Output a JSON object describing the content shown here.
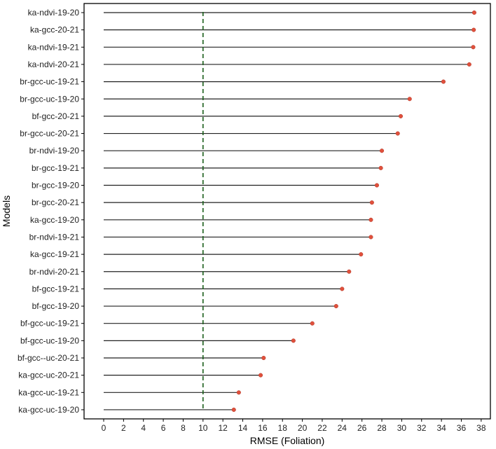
{
  "chart_data": {
    "type": "lollipop",
    "xlabel": "RMSE (Foliation)",
    "ylabel": "Models",
    "xlim": [
      0,
      38
    ],
    "xticks": [
      0,
      2,
      4,
      6,
      8,
      10,
      12,
      14,
      16,
      18,
      20,
      22,
      24,
      26,
      28,
      30,
      32,
      34,
      36,
      38
    ],
    "reference_line": {
      "x": 10,
      "style": "dashed",
      "color": "#1a5e1a"
    },
    "grid": false,
    "point_color": "#e0503c",
    "stem_color": "#222222",
    "categories": [
      "ka-ndvi-19-20",
      "ka-gcc-20-21",
      "ka-ndvi-19-21",
      "ka-ndvi-20-21",
      "br-gcc-uc-19-21",
      "br-gcc-uc-19-20",
      "bf-gcc-20-21",
      "br-gcc-uc-20-21",
      "br-ndvi-19-20",
      "br-gcc-19-21",
      "br-gcc-19-20",
      "br-gcc-20-21",
      "ka-gcc-19-20",
      "br-ndvi-19-21",
      "ka-gcc-19-21",
      "br-ndvi-20-21",
      "bf-gcc-19-21",
      "bf-gcc-19-20",
      "bf-gcc-uc-19-21",
      "bf-gcc-uc-19-20",
      "bf-gcc--uc-20-21",
      "ka-gcc-uc-20-21",
      "ka-gcc-uc-19-21",
      "ka-gcc-uc-19-20"
    ],
    "values": [
      37.3,
      37.25,
      37.2,
      36.8,
      34.2,
      30.8,
      29.9,
      29.6,
      28.0,
      27.9,
      27.5,
      27.0,
      26.9,
      26.9,
      25.9,
      24.7,
      24.0,
      23.4,
      21.0,
      19.1,
      16.1,
      15.8,
      13.6,
      13.1
    ]
  }
}
